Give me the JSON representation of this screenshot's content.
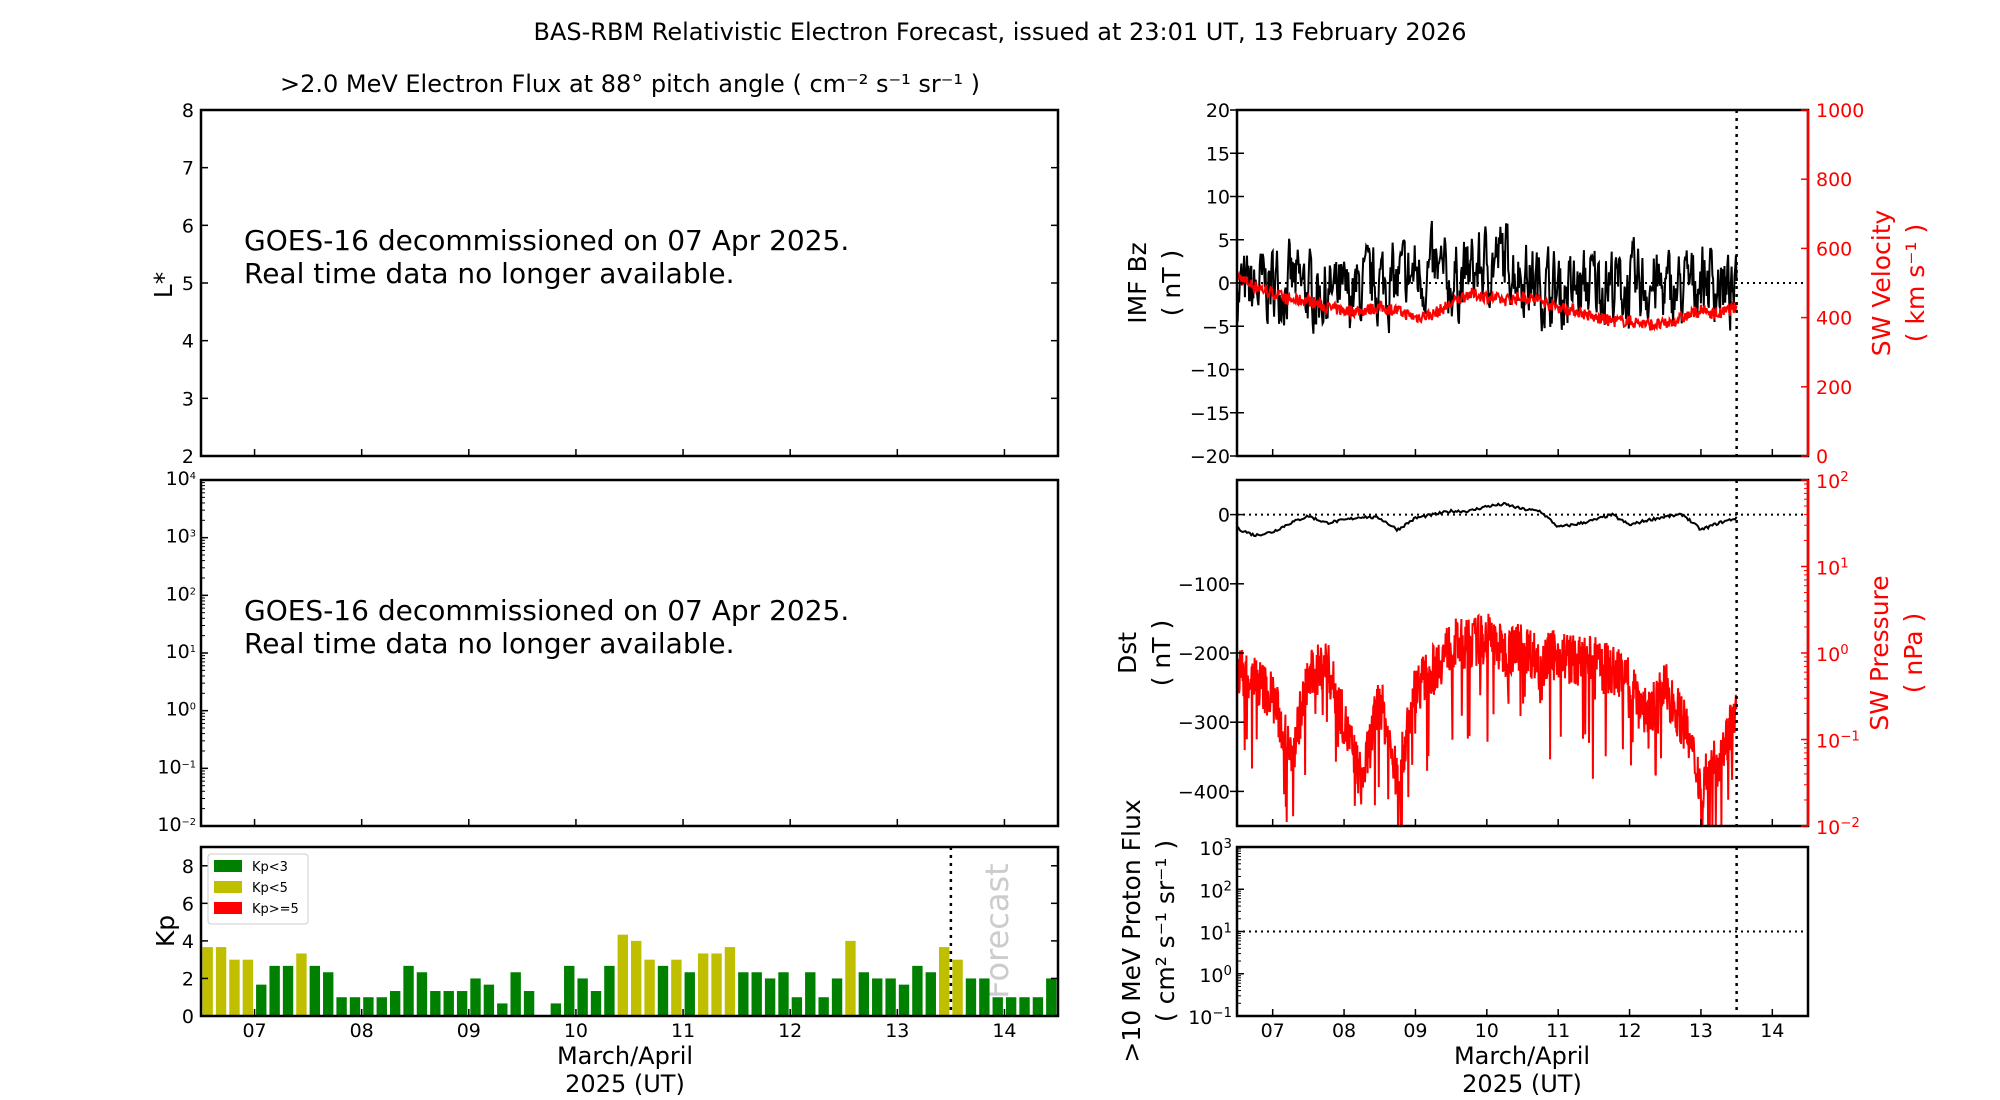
{
  "title": "BAS-RBM Relativistic Electron Forecast, issued at 23:01 UT, 13 February 2026",
  "colors": {
    "green": "#008000",
    "yellow": "#bfbf00",
    "red": "#ff0000",
    "forecast_text": "#cccccc"
  },
  "chart_data": [
    {
      "id": "electron-flux-lstar",
      "type": "heatmap",
      "title": ">2.0 MeV Electron Flux at 88° pitch angle ( cm⁻² s⁻¹ sr⁻¹ )",
      "ylabel": "L*",
      "ylim": [
        2,
        8
      ],
      "yticks": [
        "2",
        "3",
        "4",
        "5",
        "6",
        "7",
        "8"
      ],
      "message_line1": "GOES-16 decommissioned on 07 Apr 2025.",
      "message_line2": "Real time data no longer available."
    },
    {
      "id": "electron-flux-geo",
      "type": "line",
      "yscale": "log",
      "ylim_exp": [
        -2,
        4
      ],
      "message_line1": "GOES-16 decommissioned on 07 Apr 2025.",
      "message_line2": "Real time data no longer available."
    },
    {
      "id": "kp",
      "type": "bar",
      "ylabel": "Kp",
      "ylim": [
        0,
        9
      ],
      "yticks": [
        "0",
        "2",
        "4",
        "6",
        "8"
      ],
      "xlim": [
        6.5,
        14.5
      ],
      "bar_interval_days": 0.125,
      "values": [
        3.67,
        3.67,
        3,
        3,
        1.67,
        2.67,
        2.67,
        3.33,
        2.67,
        2.33,
        1,
        1,
        1,
        1,
        1.33,
        2.67,
        2.33,
        1.33,
        1.33,
        1.33,
        2,
        1.67,
        0.67,
        2.33,
        1.33,
        0,
        0.67,
        2.67,
        2,
        1.33,
        2.67,
        4.33,
        4,
        3,
        2.67,
        3,
        2.33,
        3.33,
        3.33,
        3.67,
        2.33,
        2.33,
        2,
        2.33,
        1,
        2.33,
        1,
        2,
        4,
        2.33,
        2,
        2,
        1.67,
        2.67,
        2.33,
        3.67,
        3,
        2,
        2,
        1,
        1,
        1,
        1,
        2
      ],
      "legend": [
        "Kp<3",
        "Kp<5",
        "Kp>=5"
      ],
      "legend_position": "top-left",
      "forecast_label": "Forecast",
      "forecast_start": 13.5,
      "xticks": [
        "07",
        "08",
        "09",
        "10",
        "11",
        "12",
        "13",
        "14"
      ],
      "xlabel_line1": "March/April",
      "xlabel_line2": "2025 (UT)"
    },
    {
      "id": "imf-bz-sw-velocity",
      "type": "line",
      "ylabel_line1": "IMF Bz",
      "ylabel_line2": "( nT )",
      "ylim": [
        -20,
        20
      ],
      "yticks": [
        "−20",
        "−15",
        "−10",
        "−5",
        "0",
        "5",
        "10",
        "15",
        "20"
      ],
      "y2label_line1": "SW Velocity",
      "y2label_line2": "( km s⁻¹ )",
      "y2lim": [
        0,
        1000
      ],
      "y2ticks": [
        "0",
        "200",
        "400",
        "600",
        "800",
        "1000"
      ],
      "x_range_data": [
        6.5,
        13.5
      ],
      "bz_6h_mean": [
        -1,
        -1,
        0,
        0,
        -1,
        -1,
        -2,
        -1,
        0,
        0,
        1,
        1,
        0,
        1,
        2,
        3,
        1,
        0,
        -1,
        -1,
        0,
        0,
        -1,
        0,
        -1,
        -1,
        1,
        0,
        -2
      ],
      "bz_noise_amplitude": 4.5,
      "velocity_6h": [
        520,
        490,
        470,
        450,
        450,
        430,
        420,
        420,
        430,
        420,
        400,
        410,
        440,
        470,
        460,
        450,
        460,
        450,
        430,
        420,
        400,
        390,
        390,
        380,
        380,
        400,
        420,
        410,
        430
      ]
    },
    {
      "id": "dst-sw-pressure",
      "type": "line",
      "ylabel_line1": "Dst",
      "ylabel_line2": "( nT )",
      "ylim": [
        -450,
        50
      ],
      "yticks": [
        "−400",
        "−300",
        "−200",
        "−100",
        "0"
      ],
      "y2label_line1": "SW Pressure",
      "y2label_line2": "( nPa )",
      "y2scale": "log",
      "y2lim_exp": [
        -2,
        2
      ],
      "dst_6h": [
        -20,
        -30,
        -25,
        -12,
        -2,
        -12,
        -8,
        -3,
        -5,
        -22,
        -5,
        0,
        5,
        5,
        12,
        15,
        8,
        5,
        -18,
        -14,
        -8,
        0,
        -15,
        -8,
        -3,
        0,
        -22,
        -12,
        -5
      ],
      "pressure_log10_6h": [
        -0.2,
        -0.3,
        -0.5,
        -1.2,
        -0.3,
        -0.1,
        -0.8,
        -1.5,
        -0.5,
        -1.5,
        -0.4,
        -0.2,
        0.1,
        0.1,
        0.2,
        0,
        0.1,
        -0.1,
        0,
        -0.1,
        -0.1,
        -0.2,
        -0.3,
        -0.7,
        -0.4,
        -0.8,
        -1.5,
        -1.2,
        -0.7
      ]
    },
    {
      "id": "proton-flux",
      "type": "line",
      "ylabel_line1": ">10 MeV Proton Flux",
      "ylabel_line2": "( cm² s⁻¹ sr⁻¹ )",
      "yscale": "log",
      "ylim_exp": [
        -1,
        3
      ],
      "threshold": 10,
      "xticks": [
        "07",
        "08",
        "09",
        "10",
        "11",
        "12",
        "13",
        "14"
      ],
      "xlabel_line1": "March/April",
      "xlabel_line2": "2025 (UT)"
    }
  ]
}
